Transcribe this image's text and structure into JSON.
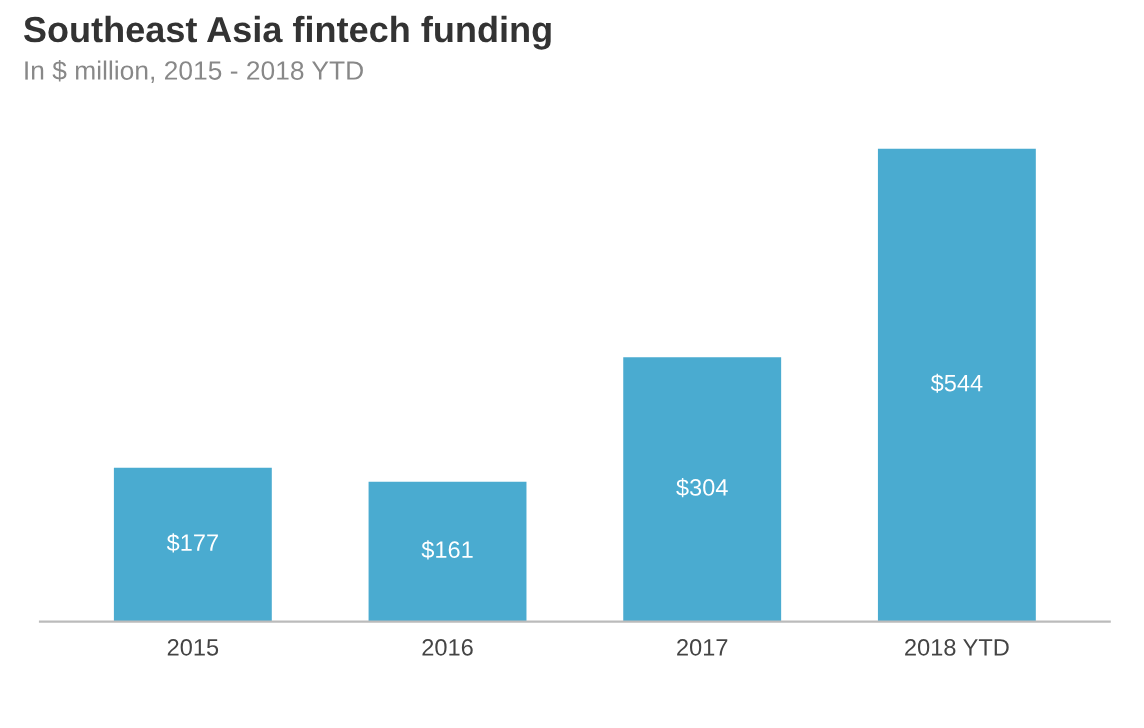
{
  "chart_data": {
    "type": "bar",
    "title": "Southeast Asia fintech funding",
    "subtitle": "In $ million, 2015 - 2018 YTD",
    "categories": [
      "2015",
      "2016",
      "2017",
      "2018 YTD"
    ],
    "values": [
      177,
      161,
      304,
      544
    ],
    "value_labels": [
      "$177",
      "$161",
      "$304",
      "$544"
    ],
    "color": "#4aabd0",
    "grid": false,
    "legend": false
  }
}
